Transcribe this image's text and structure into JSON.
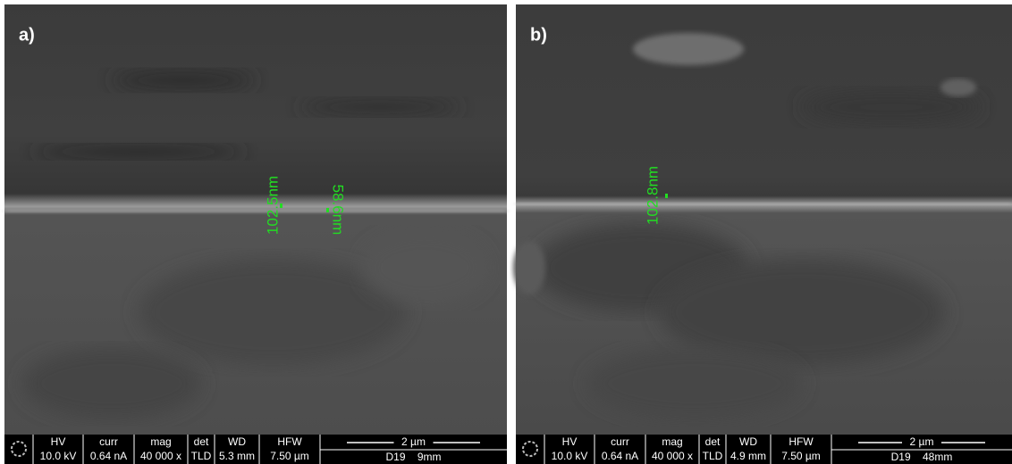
{
  "panels": [
    {
      "label": "a)",
      "measurements": [
        "102.5nm",
        "58.6nm"
      ],
      "info": {
        "headers": [
          "HV",
          "curr",
          "mag",
          "det",
          "WD",
          "HFW"
        ],
        "values": [
          "10.0 kV",
          "0.64 nA",
          "40 000 x",
          "TLD",
          "5.3 mm",
          "7.50 µm"
        ],
        "scale": "2 µm",
        "footer": "D19    9mm"
      }
    },
    {
      "label": "b)",
      "measurements": [
        "102.8nm"
      ],
      "info": {
        "headers": [
          "HV",
          "curr",
          "mag",
          "det",
          "WD",
          "HFW"
        ],
        "values": [
          "10.0 kV",
          "0.64 nA",
          "40 000 x",
          "TLD",
          "4.9 mm",
          "7.50 µm"
        ],
        "scale": "2 µm",
        "footer": "D19    48mm"
      }
    }
  ]
}
